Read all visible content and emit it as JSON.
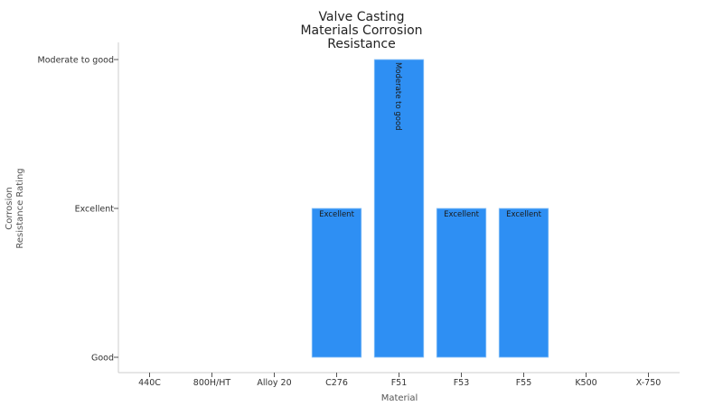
{
  "chart_data": {
    "type": "bar",
    "title_lines": [
      "Valve Casting",
      "Materials Corrosion",
      "Resistance"
    ],
    "xlabel": "Material",
    "ylabel_lines": [
      "Corrosion",
      "Resistance Rating"
    ],
    "categories": [
      "440C",
      "800H/HT",
      "Alloy 20",
      "C276",
      "F51",
      "F53",
      "F55",
      "K500",
      "X-750"
    ],
    "y_ticks": [
      "Good",
      "Excellent",
      "Moderate to good"
    ],
    "values": [
      null,
      null,
      null,
      1,
      2,
      1,
      1,
      null,
      null
    ],
    "data_labels": [
      null,
      null,
      null,
      "Excellent",
      "Moderate to good",
      "Excellent",
      "Excellent",
      null,
      null
    ],
    "bar_color": "#2e8ff3",
    "grid": false,
    "legend": "none"
  }
}
